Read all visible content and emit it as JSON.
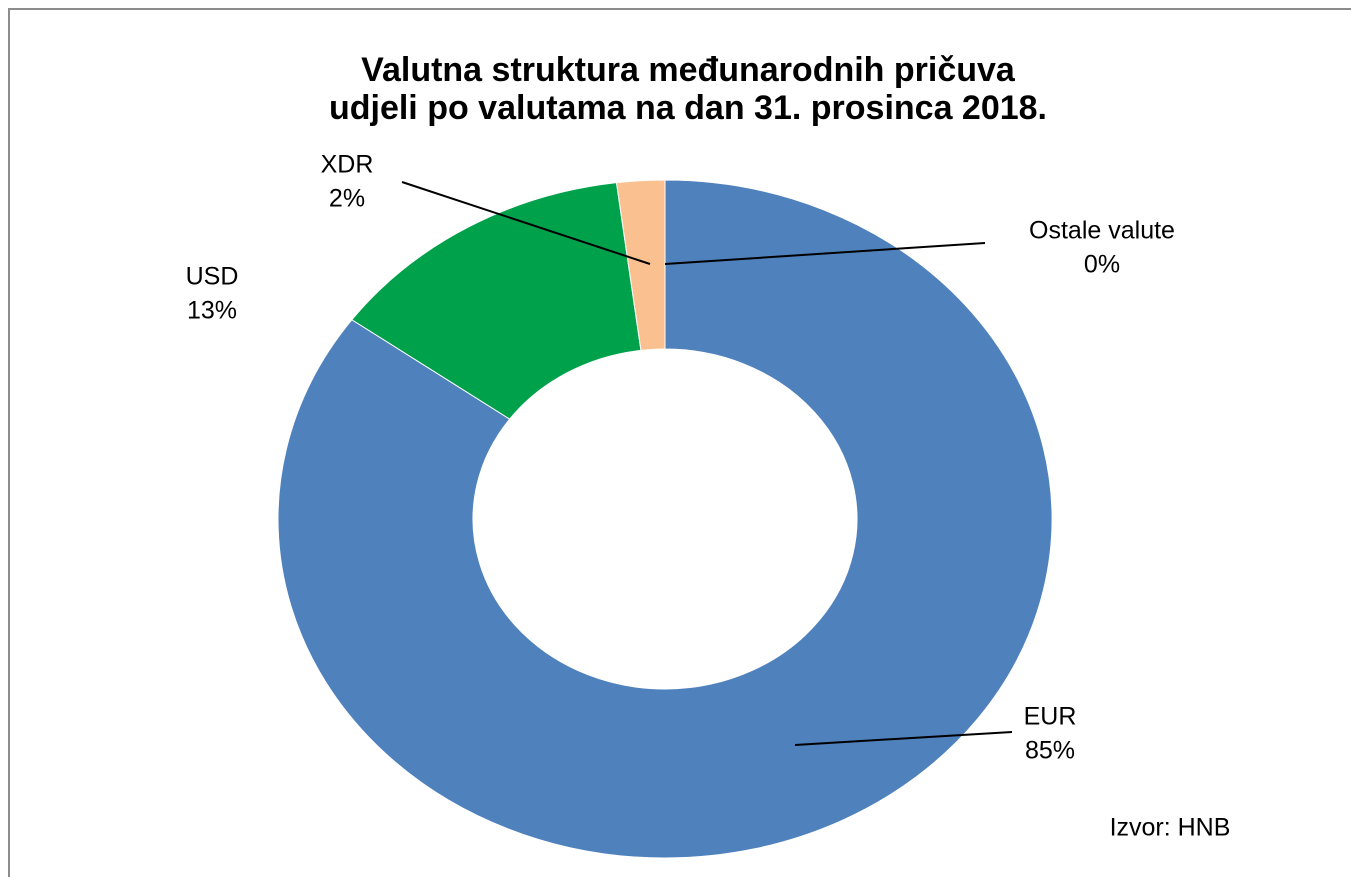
{
  "chart_data": {
    "type": "donut",
    "title": "Valutna struktura međunarodnih pričuva",
    "subtitle": "udjeli po valutama na dan 31. prosinca 2018.",
    "categories": [
      "EUR",
      "USD",
      "XDR",
      "Ostale valute"
    ],
    "values": [
      85,
      13,
      2,
      0
    ],
    "value_labels": [
      "85%",
      "13%",
      "2%",
      "0%"
    ],
    "colors": [
      "#4f81bd",
      "#00a14b",
      "#fac090",
      "#c0504d"
    ],
    "source": "Izvor: HNB"
  }
}
